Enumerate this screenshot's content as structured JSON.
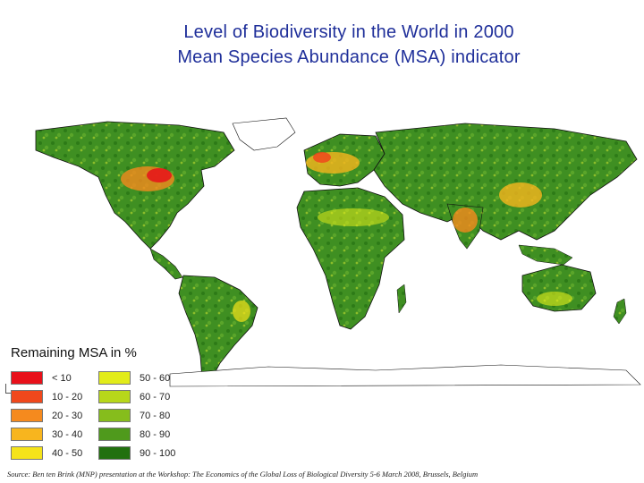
{
  "title": {
    "line1": "Level of Biodiversity in the World in 2000",
    "line2": "Mean Species Abundance (MSA) indicator"
  },
  "legend": {
    "title": "Remaining MSA in %",
    "items": [
      {
        "label": "< 10",
        "color": "#e8101a"
      },
      {
        "label": "10 - 20",
        "color": "#f0481c"
      },
      {
        "label": "20 - 30",
        "color": "#f58a1e"
      },
      {
        "label": "30 - 40",
        "color": "#f8b51e"
      },
      {
        "label": "40 - 50",
        "color": "#f5e31a"
      },
      {
        "label": "50 - 60",
        "color": "#e2ec1a"
      },
      {
        "label": "60 - 70",
        "color": "#b7d71a"
      },
      {
        "label": "70 - 80",
        "color": "#86bd1c"
      },
      {
        "label": "80 - 90",
        "color": "#4f9a1c"
      },
      {
        "label": "90 - 100",
        "color": "#22700f"
      }
    ]
  },
  "map": {
    "ocean_color": "#ffffff",
    "land_color": "#3f8f22",
    "border_color": "#111111"
  },
  "source": "Source:  Ben ten Brink (MNP)  presentation at the Workshop: The Economics of the Global Loss of Biological Diversity 5-6 March 2008, Brussels, Belgium"
}
